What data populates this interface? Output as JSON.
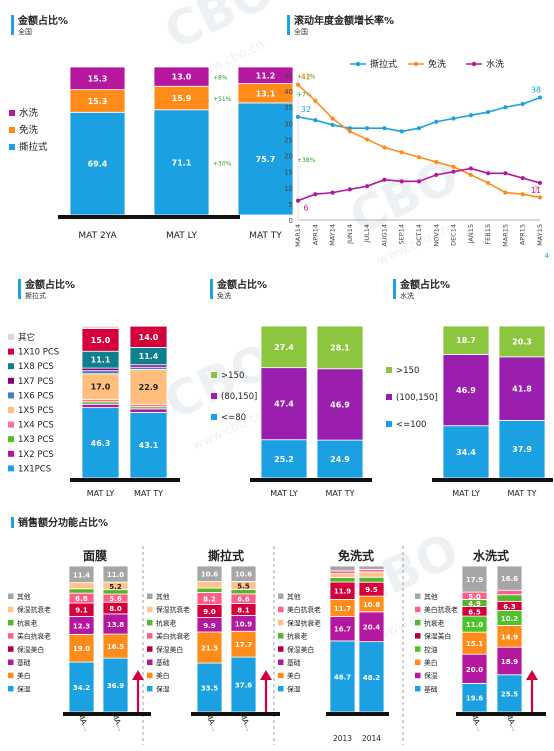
{
  "charts": [
    {
      "id": "share_all",
      "type": "stacked-bar",
      "title": "金额占比%",
      "subtitle": "全国",
      "categories": [
        "MAT 2YA",
        "MAT LY",
        "MAT TY"
      ],
      "legend": [
        {
          "name": "水洗",
          "color": "#b5179e"
        },
        {
          "name": "免洗",
          "color": "#ff8c1a"
        },
        {
          "name": "撕拉式",
          "color": "#1ba1e2"
        }
      ],
      "series": [
        {
          "name": "撕拉式",
          "color": "#1ba1e2",
          "values": [
            69.4,
            71.1,
            75.7
          ]
        },
        {
          "name": "免洗",
          "color": "#ff8c1a",
          "values": [
            15.3,
            15.9,
            13.1
          ]
        },
        {
          "name": "水洗",
          "color": "#b5179e",
          "values": [
            15.3,
            13.0,
            11.2
          ]
        }
      ],
      "growth": [
        {
          "category": "MAT LY",
          "labels": [
            "+30%",
            "+51%",
            "+8%"
          ]
        },
        {
          "category": "MAT TY",
          "labels": [
            "+38%",
            "+7%",
            "+11%"
          ]
        }
      ]
    },
    {
      "id": "growth_line",
      "type": "line",
      "title": "滚动年度金额增长率%",
      "subtitle": "全国",
      "x": [
        "MAR14",
        "APR14",
        "MAY14",
        "JUN14",
        "JUL14",
        "AUG14",
        "SEP14",
        "OCT14",
        "NOV14",
        "DEC14",
        "JAN15",
        "FEB15",
        "MAR15",
        "APR15",
        "MAY15"
      ],
      "ylim": [
        0,
        45
      ],
      "yticks": [
        0,
        5,
        10,
        15,
        20,
        25,
        30,
        35,
        40,
        45
      ],
      "series": [
        {
          "name": "撕拉式",
          "color": "#1ba1e2",
          "values": [
            32,
            31,
            29.5,
            28.5,
            28.5,
            28.5,
            27.5,
            28.5,
            30.5,
            31.5,
            32.5,
            33.5,
            35,
            36,
            38
          ]
        },
        {
          "name": "免洗",
          "color": "#ff8c1a",
          "values": [
            42,
            37,
            31.5,
            27.5,
            25,
            22.5,
            21,
            19.5,
            18,
            16.5,
            14,
            11.5,
            8.5,
            8,
            7
          ]
        },
        {
          "name": "水洗",
          "color": "#b5179e",
          "values": [
            6,
            8,
            8.5,
            9.5,
            10.5,
            12.5,
            12,
            12,
            14,
            15,
            16,
            14.5,
            14.5,
            13,
            11.5
          ]
        }
      ],
      "labels": [
        {
          "series": 0,
          "index": 0,
          "text": "32"
        },
        {
          "series": 0,
          "index": 14,
          "text": "38"
        },
        {
          "series": 1,
          "index": 0,
          "text": "42"
        },
        {
          "series": 1,
          "index": 14,
          "text": "7"
        },
        {
          "series": 2,
          "index": 0,
          "text": "6"
        },
        {
          "series": 2,
          "index": 14,
          "text": "11"
        }
      ],
      "edge_label": "4"
    },
    {
      "id": "tear_pieces",
      "type": "stacked-bar",
      "title": "金额占比%",
      "subtitle": "撕拉式",
      "categories": [
        "MAT LY",
        "MAT TY"
      ],
      "legend": [
        {
          "name": "其它",
          "color": "#d9d9d9"
        },
        {
          "name": "1X10 PCS",
          "color": "#d4003c"
        },
        {
          "name": "1X8 PCS",
          "color": "#0d7f8f"
        },
        {
          "name": "1X7 PCS",
          "color": "#8a0074"
        },
        {
          "name": "1X6 PCS",
          "color": "#3f7fbf"
        },
        {
          "name": "1X5 PCS",
          "color": "#ffbe7d"
        },
        {
          "name": "1X4 PCS",
          "color": "#ff6f91"
        },
        {
          "name": "1X3 PCS",
          "color": "#4fc12a"
        },
        {
          "name": "1X2 PCS",
          "color": "#b5179e"
        },
        {
          "name": "1X1PCS",
          "color": "#1ba1e2"
        }
      ],
      "series": [
        {
          "name": "1X1PCS",
          "color": "#1ba1e2",
          "values": [
            46.3,
            43.1
          ]
        },
        {
          "name": "1X2 PCS",
          "color": "#b5179e",
          "values": [
            2.2,
            2.4
          ]
        },
        {
          "name": "1X3 PCS",
          "color": "#4fc12a",
          "values": [
            1.6,
            1.4
          ]
        },
        {
          "name": "1X4 PCS",
          "color": "#ff6f91",
          "values": [
            1.5,
            1.6
          ]
        },
        {
          "name": "1X5 PCS",
          "color": "#ffbe7d",
          "values": [
            17.0,
            22.9
          ]
        },
        {
          "name": "1X6 PCS",
          "color": "#3f7fbf",
          "values": [
            2.0,
            1.5
          ]
        },
        {
          "name": "1X7 PCS",
          "color": "#8a0074",
          "values": [
            1.7,
            1.6
          ]
        },
        {
          "name": "1X8 PCS",
          "color": "#0d7f8f",
          "values": [
            11.1,
            11.4
          ]
        },
        {
          "name": "1X10 PCS",
          "color": "#d4003c",
          "values": [
            15.0,
            14.0
          ]
        },
        {
          "name": "其它",
          "color": "#d9d9d9",
          "values": [
            1.6,
            0.1
          ]
        }
      ],
      "hide_labels_below": 5
    },
    {
      "id": "leave_price",
      "type": "stacked-bar",
      "title": "金额占比%",
      "subtitle": "免洗",
      "categories": [
        "MAT LY",
        "MAT TY"
      ],
      "legend": [
        {
          "name": ">150",
          "color": "#8cc63f"
        },
        {
          "name": "(80,150]",
          "color": "#9b1fae"
        },
        {
          "name": "<=80",
          "color": "#1ba1e2"
        }
      ],
      "series": [
        {
          "name": "<=80",
          "color": "#1ba1e2",
          "values": [
            25.2,
            24.9
          ]
        },
        {
          "name": "(80,150]",
          "color": "#9b1fae",
          "values": [
            47.4,
            46.9
          ]
        },
        {
          "name": ">150",
          "color": "#8cc63f",
          "values": [
            27.4,
            28.1
          ]
        }
      ]
    },
    {
      "id": "wash_price",
      "type": "stacked-bar",
      "title": "金额占比%",
      "subtitle": "水洗",
      "categories": [
        "MAT LY",
        "MAT TY"
      ],
      "legend": [
        {
          "name": ">150",
          "color": "#8cc63f"
        },
        {
          "name": "(100,150]",
          "color": "#9b1fae"
        },
        {
          "name": "<=100",
          "color": "#1ba1e2"
        }
      ],
      "series": [
        {
          "name": "<=100",
          "color": "#1ba1e2",
          "values": [
            34.4,
            37.9
          ]
        },
        {
          "name": "(100,150]",
          "color": "#9b1fae",
          "values": [
            46.9,
            41.8
          ]
        },
        {
          "name": ">150",
          "color": "#8cc63f",
          "values": [
            18.7,
            20.3
          ]
        }
      ]
    }
  ],
  "function_section": {
    "title": "销售额分功能占比%",
    "groups": [
      {
        "title": "面膜",
        "categories": [
          "MA...",
          "MA..."
        ],
        "arrow": true,
        "legend": [
          {
            "name": "其他",
            "color": "#a6a6a6"
          },
          {
            "name": "保湿抗衰老",
            "color": "#ffc48c"
          },
          {
            "name": "抗衰老",
            "color": "#55b52c"
          },
          {
            "name": "美白抗衰老",
            "color": "#ff5f86"
          },
          {
            "name": "保湿美白",
            "color": "#b3003c"
          },
          {
            "name": "基础",
            "color": "#b5179e"
          },
          {
            "name": "美白",
            "color": "#ff8c1a"
          },
          {
            "name": "保湿",
            "color": "#1ba1e2"
          }
        ],
        "series": [
          {
            "name": "保湿",
            "color": "#1ba1e2",
            "values": [
              34.2,
              36.9
            ]
          },
          {
            "name": "美白",
            "color": "#ff8c1a",
            "values": [
              19.0,
              16.5
            ]
          },
          {
            "name": "基础",
            "color": "#b5179e",
            "values": [
              12.3,
              13.8
            ]
          },
          {
            "name": "保湿美白",
            "color": "#d4003c",
            "values": [
              9.1,
              8.0
            ]
          },
          {
            "name": "美白抗衰老",
            "color": "#ff5f86",
            "values": [
              6.8,
              5.6
            ]
          },
          {
            "name": "抗衰老",
            "color": "#55b52c",
            "values": [
              3.0,
              3.0
            ]
          },
          {
            "name": "保湿抗衰老",
            "color": "#ffc48c",
            "values": [
              4.2,
              5.2
            ]
          },
          {
            "name": "其他",
            "color": "#a6a6a6",
            "values": [
              11.4,
              11.0
            ]
          }
        ]
      },
      {
        "title": "撕拉式",
        "categories": [
          "MA...",
          "MA..."
        ],
        "arrow": true,
        "legend": [
          {
            "name": "其他",
            "color": "#a6a6a6"
          },
          {
            "name": "保湿抗衰老",
            "color": "#ffc48c"
          },
          {
            "name": "抗衰老",
            "color": "#55b52c"
          },
          {
            "name": "美白抗衰老",
            "color": "#ff5f86"
          },
          {
            "name": "保湿美白",
            "color": "#b3003c"
          },
          {
            "name": "基础",
            "color": "#b5179e"
          },
          {
            "name": "美白",
            "color": "#ff8c1a"
          },
          {
            "name": "保湿",
            "color": "#1ba1e2"
          }
        ],
        "series": [
          {
            "name": "保湿",
            "color": "#1ba1e2",
            "values": [
              33.5,
              37.6
            ]
          },
          {
            "name": "美白",
            "color": "#ff8c1a",
            "values": [
              21.3,
              17.7
            ]
          },
          {
            "name": "基础",
            "color": "#b5179e",
            "values": [
              9.9,
              10.9
            ]
          },
          {
            "name": "保湿美白",
            "color": "#d4003c",
            "values": [
              9.0,
              8.1
            ]
          },
          {
            "name": "美白抗衰老",
            "color": "#ff5f86",
            "values": [
              8.2,
              6.6
            ]
          },
          {
            "name": "抗衰老",
            "color": "#55b52c",
            "values": [
              3.0,
              3.0
            ]
          },
          {
            "name": "保湿抗衰老",
            "color": "#ffc48c",
            "values": [
              4.5,
              5.5
            ]
          },
          {
            "name": "其他",
            "color": "#a6a6a6",
            "values": [
              10.6,
              10.6
            ]
          }
        ]
      },
      {
        "title": "免洗式",
        "categories": [
          "2013",
          "2014"
        ],
        "arrow": false,
        "legend": [
          {
            "name": "其他",
            "color": "#a6a6a6"
          },
          {
            "name": "美白抗衰老",
            "color": "#ff5f86"
          },
          {
            "name": "保湿抗衰老",
            "color": "#ffc48c"
          },
          {
            "name": "抗衰老",
            "color": "#55b52c"
          },
          {
            "name": "保湿美白",
            "color": "#b3003c"
          },
          {
            "name": "基础",
            "color": "#b5179e"
          },
          {
            "name": "美白",
            "color": "#ff8c1a"
          },
          {
            "name": "保湿",
            "color": "#1ba1e2"
          }
        ],
        "series": [
          {
            "name": "保湿",
            "color": "#1ba1e2",
            "values": [
              48.7,
              48.2
            ]
          },
          {
            "name": "基础",
            "color": "#b5179e",
            "values": [
              16.7,
              20.4
            ]
          },
          {
            "name": "美白",
            "color": "#ff8c1a",
            "values": [
              11.7,
              10.8
            ]
          },
          {
            "name": "保湿美白",
            "color": "#d4003c",
            "values": [
              11.9,
              9.5
            ]
          },
          {
            "name": "抗衰老",
            "color": "#55b52c",
            "values": [
              3.2,
              3.4
            ]
          },
          {
            "name": "保湿抗衰老",
            "color": "#ffc48c",
            "values": [
              2.6,
              3.7
            ]
          },
          {
            "name": "美白抗衰老",
            "color": "#ff5f86",
            "values": [
              1.8,
              1.6
            ]
          },
          {
            "name": "其他",
            "color": "#a6a6a6",
            "values": [
              3.4,
              2.4
            ]
          }
        ]
      },
      {
        "title": "水洗式",
        "categories": [
          "MA...",
          "MA..."
        ],
        "arrow": true,
        "legend": [
          {
            "name": "其他",
            "color": "#a6a6a6"
          },
          {
            "name": "美白抗衰老",
            "color": "#ff5f86"
          },
          {
            "name": "抗衰老",
            "color": "#55b52c"
          },
          {
            "name": "保湿美白",
            "color": "#b3003c"
          },
          {
            "name": "控油",
            "color": "#4fc12a"
          },
          {
            "name": "美白",
            "color": "#ff8c1a"
          },
          {
            "name": "保湿",
            "color": "#b5179e"
          },
          {
            "name": "基础",
            "color": "#1ba1e2"
          }
        ],
        "series": [
          {
            "name": "基础",
            "color": "#1ba1e2",
            "values": [
              19.6,
              25.5
            ]
          },
          {
            "name": "保湿",
            "color": "#b5179e",
            "values": [
              20.0,
              18.9
            ]
          },
          {
            "name": "美白",
            "color": "#ff8c1a",
            "values": [
              15.1,
              14.9
            ]
          },
          {
            "name": "控油",
            "color": "#4fc12a",
            "values": [
              11.0,
              10.2
            ]
          },
          {
            "name": "保湿美白",
            "color": "#d4003c",
            "values": [
              6.5,
              6.3
            ]
          },
          {
            "name": "抗衰老",
            "color": "#55b52c",
            "values": [
              4.9,
              4.5
            ]
          },
          {
            "name": "美白抗衰老",
            "color": "#ff5f86",
            "values": [
              5.0,
              3.1
            ]
          },
          {
            "name": "其他",
            "color": "#a6a6a6",
            "values": [
              17.9,
              16.6
            ]
          }
        ]
      }
    ]
  },
  "watermark": {
    "logo": "CBO",
    "url": "www.cbo.cn"
  }
}
